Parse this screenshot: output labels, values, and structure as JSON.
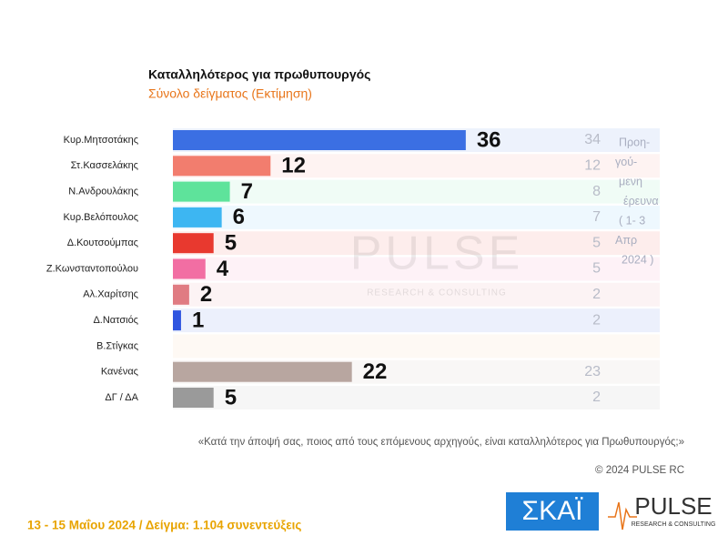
{
  "chart_data": {
    "type": "bar",
    "title": "Καταλληλότερος για πρωθυπουργός",
    "subtitle": "Σύνολο δείγματος   (Εκτίμηση)",
    "categories": [
      "Κυρ.Μητσοτάκης",
      "Στ.Κασσελάκης",
      "Ν.Ανδρουλάκης",
      "Κυρ.Βελόπουλος",
      "Δ.Κουτσούμπας",
      "Ζ.Κωνσταντοπούλου",
      "Αλ.Χαρίτσης",
      "Δ.Νατσιός",
      "Β.Στίγκας",
      "Κανένας",
      "ΔΓ / ΔΑ"
    ],
    "values": [
      36,
      12,
      7,
      6,
      5,
      4,
      2,
      1,
      null,
      22,
      5
    ],
    "colors": [
      "#3b6fe3",
      "#f27d6e",
      "#5ee39b",
      "#3db6f2",
      "#e8392f",
      "#f26ea3",
      "#e07b82",
      "#2f55e0",
      "#f2c28a",
      "#b8a6a0",
      "#9a9a9a"
    ],
    "previous_values": [
      34,
      12,
      8,
      7,
      5,
      5,
      2,
      2,
      null,
      23,
      2
    ],
    "previous_note": [
      "Προη-",
      "γού-",
      "μενη",
      "έρευνα",
      "( 1- 3",
      "Απρ",
      "2024 )"
    ],
    "question": "«Κατά την άποψή σας, ποιος από τους επόμενους αρχηγούς, είναι καταλληλότερος για Πρωθυπουργός;»",
    "copyright": "© 2024 PULSE RC",
    "footer": "13 - 15  Μαΐου  2024  /  Δείγμα:  1.104 συνεντεύξεις",
    "logo_skai": "ΣΚΑΪ",
    "logo_pulse": "PULSE",
    "logo_pulse_sub": "RESEARCH & CONSULTING"
  }
}
